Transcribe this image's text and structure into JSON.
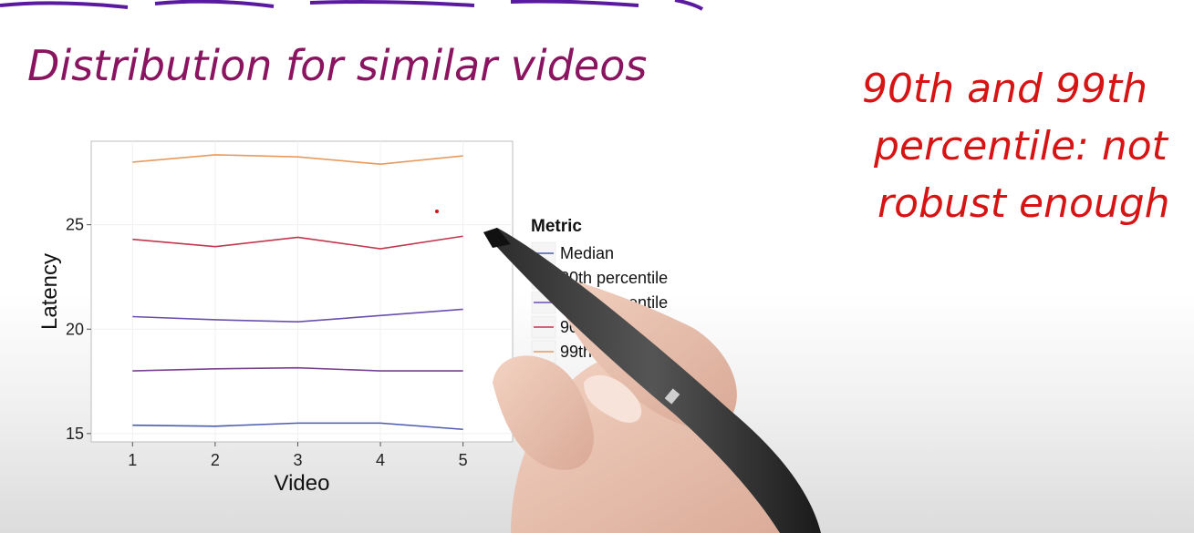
{
  "handwriting": {
    "title": "Distribution for similar videos",
    "note_line1": "90th and 99th",
    "note_line2": "percentile: not",
    "note_line3": "robust enough",
    "title_color": "#8a1460",
    "note_color": "#d61414"
  },
  "chart_data": {
    "type": "line",
    "title": "",
    "xlabel": "Video",
    "ylabel": "Latency",
    "x": [
      1,
      2,
      3,
      4,
      5
    ],
    "xlim": [
      0.5,
      5.6
    ],
    "ylim": [
      14.6,
      29.0
    ],
    "yticks": [
      15,
      20,
      25
    ],
    "grid": true,
    "legend_title": "Metric",
    "legend_position": "right",
    "series": [
      {
        "name": "Median",
        "color": "#4b5cb0",
        "values": [
          15.4,
          15.35,
          15.5,
          15.5,
          15.2
        ]
      },
      {
        "name": "80th percentile",
        "color": "#7a3f8f",
        "values": [
          18.0,
          18.1,
          18.15,
          18.0,
          18.0
        ]
      },
      {
        "name": "85th percentile",
        "color": "#6a4fae",
        "values": [
          20.6,
          20.45,
          20.35,
          20.65,
          20.95
        ]
      },
      {
        "name": "90th percentile",
        "color": "#c2364d",
        "values": [
          24.3,
          23.95,
          24.4,
          23.85,
          24.45
        ]
      },
      {
        "name": "99th percentile",
        "color": "#e89a5c",
        "values": [
          28.0,
          28.35,
          28.25,
          27.9,
          28.3
        ]
      }
    ]
  }
}
